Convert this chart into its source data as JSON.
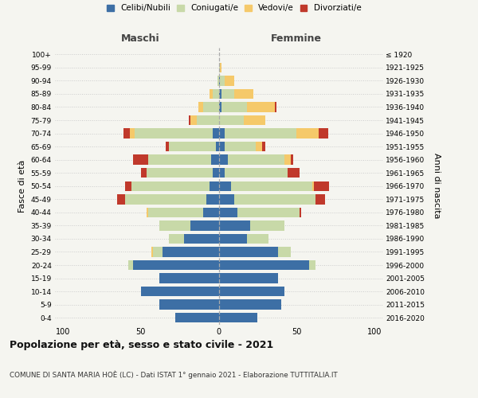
{
  "age_groups": [
    "0-4",
    "5-9",
    "10-14",
    "15-19",
    "20-24",
    "25-29",
    "30-34",
    "35-39",
    "40-44",
    "45-49",
    "50-54",
    "55-59",
    "60-64",
    "65-69",
    "70-74",
    "75-79",
    "80-84",
    "85-89",
    "90-94",
    "95-99",
    "100+"
  ],
  "birth_years": [
    "2016-2020",
    "2011-2015",
    "2006-2010",
    "2001-2005",
    "1996-2000",
    "1991-1995",
    "1986-1990",
    "1981-1985",
    "1976-1980",
    "1971-1975",
    "1966-1970",
    "1961-1965",
    "1956-1960",
    "1951-1955",
    "1946-1950",
    "1941-1945",
    "1936-1940",
    "1931-1935",
    "1926-1930",
    "1921-1925",
    "≤ 1920"
  ],
  "maschi": {
    "celibi": [
      28,
      38,
      50,
      38,
      55,
      36,
      22,
      18,
      10,
      8,
      6,
      4,
      5,
      2,
      4,
      0,
      0,
      0,
      0,
      0,
      0
    ],
    "coniugati": [
      0,
      0,
      0,
      0,
      3,
      6,
      10,
      20,
      35,
      52,
      50,
      42,
      40,
      30,
      50,
      14,
      10,
      4,
      1,
      0,
      0
    ],
    "vedovi": [
      0,
      0,
      0,
      0,
      0,
      1,
      0,
      0,
      1,
      0,
      0,
      0,
      0,
      0,
      3,
      4,
      3,
      2,
      0,
      0,
      0
    ],
    "divorziati": [
      0,
      0,
      0,
      0,
      0,
      0,
      0,
      0,
      0,
      5,
      4,
      4,
      10,
      2,
      4,
      1,
      0,
      0,
      0,
      0,
      0
    ]
  },
  "femmine": {
    "nubili": [
      25,
      40,
      42,
      38,
      58,
      38,
      18,
      20,
      12,
      10,
      8,
      4,
      6,
      4,
      4,
      0,
      2,
      2,
      1,
      0,
      0
    ],
    "coniugate": [
      0,
      0,
      0,
      0,
      4,
      8,
      14,
      22,
      40,
      52,
      52,
      40,
      36,
      20,
      46,
      16,
      16,
      8,
      3,
      1,
      0
    ],
    "vedove": [
      0,
      0,
      0,
      0,
      0,
      0,
      0,
      0,
      0,
      0,
      1,
      0,
      4,
      4,
      14,
      14,
      18,
      12,
      6,
      1,
      0
    ],
    "divorziate": [
      0,
      0,
      0,
      0,
      0,
      0,
      0,
      0,
      1,
      6,
      10,
      8,
      2,
      2,
      6,
      0,
      1,
      0,
      0,
      0,
      0
    ]
  },
  "colors": {
    "celibi": "#3d6fa5",
    "coniugati": "#c8d9a8",
    "vedovi": "#f5c96a",
    "divorziati": "#c0392b"
  },
  "title": "Popolazione per età, sesso e stato civile - 2021",
  "subtitle": "COMUNE DI SANTA MARIA HOÈ (LC) - Dati ISTAT 1° gennaio 2021 - Elaborazione TUTTITALIA.IT",
  "xlabel_left": "Maschi",
  "xlabel_right": "Femmine",
  "ylabel_left": "Fasce di età",
  "ylabel_right": "Anni di nascita",
  "xlim": 105,
  "legend_labels": [
    "Celibi/Nubili",
    "Coniugati/e",
    "Vedovi/e",
    "Divorziati/e"
  ],
  "background_color": "#f5f5f0",
  "grid_color": "#cccccc"
}
